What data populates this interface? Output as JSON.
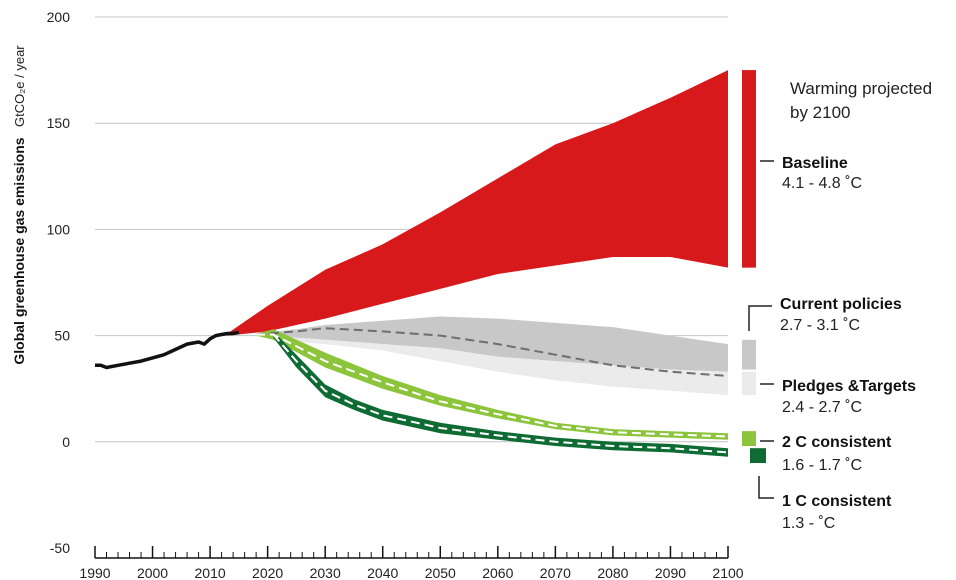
{
  "chart_data": {
    "type": "area",
    "ylabel_bold": "Global greenhouse gas emissions",
    "ylabel_unit": "GtCO₂e / year",
    "legend_heading": [
      "Warming projected",
      "by 2100"
    ],
    "x_ticks": [
      1990,
      2000,
      2010,
      2020,
      2030,
      2040,
      2050,
      2060,
      2070,
      2080,
      2090,
      2100
    ],
    "y_ticks": [
      -50,
      0,
      50,
      100,
      150,
      200
    ],
    "xlim": [
      1990,
      2100
    ],
    "ylim": [
      -50,
      200
    ],
    "historical": {
      "x": [
        1990,
        1991,
        1992,
        1994,
        1996,
        1998,
        2000,
        2002,
        2004,
        2006,
        2008,
        2009,
        2010,
        2011,
        2012,
        2013,
        2014,
        2015
      ],
      "y": [
        36,
        36,
        35,
        36,
        37,
        38,
        39.5,
        41,
        43.5,
        46,
        47,
        46,
        48.5,
        50,
        50.5,
        51,
        51,
        51.5
      ]
    },
    "bands": [
      {
        "name": "Baseline",
        "range": "4.1 - 4.8 ˚C",
        "color": "#d7191c",
        "x": [
          2013,
          2020,
          2030,
          2040,
          2050,
          2060,
          2070,
          2080,
          2090,
          2100
        ],
        "upper": [
          51,
          64,
          81,
          93,
          108,
          124,
          140,
          150,
          162,
          175
        ],
        "lower": [
          50,
          52,
          58,
          65,
          72,
          79,
          83,
          87,
          87,
          82
        ]
      },
      {
        "name": "Current policies",
        "range": "2.7 - 3.1 ˚C",
        "color": "#c8c8c8",
        "x": [
          2018,
          2025,
          2030,
          2040,
          2050,
          2060,
          2070,
          2080,
          2090,
          2100
        ],
        "upper": [
          51,
          53,
          55,
          57,
          59,
          58,
          56,
          54,
          50,
          46
        ],
        "lower": [
          50,
          49,
          48,
          46,
          44,
          40,
          38,
          36,
          34,
          33
        ],
        "median": [
          50.5,
          52,
          53.5,
          52,
          50,
          46,
          41,
          36,
          33,
          31
        ]
      },
      {
        "name": "Pledges &Targets",
        "range": "2.4 - 2.7 ˚C",
        "color": "#ebebeb",
        "x": [
          2018,
          2025,
          2030,
          2040,
          2050,
          2060,
          2070,
          2080,
          2090,
          2100
        ],
        "upper": [
          50,
          49,
          48,
          46,
          44,
          40,
          38,
          36,
          34,
          33
        ],
        "lower": [
          50,
          47,
          46,
          43,
          38,
          33,
          29,
          26,
          24,
          22
        ]
      },
      {
        "name": "2 C consistent",
        "range": "1.6 - 1.7 ˚C",
        "color": "#8cc43c",
        "x": [
          2018,
          2021,
          2030,
          2040,
          2050,
          2060,
          2070,
          2080,
          2090,
          2100
        ],
        "upper": [
          51,
          53,
          42,
          31,
          22,
          15,
          9,
          6,
          5,
          4
        ],
        "lower": [
          50,
          48,
          35,
          25,
          17,
          11,
          6,
          3,
          2,
          1
        ],
        "median": [
          50.5,
          50.5,
          38,
          28,
          19,
          13,
          7.5,
          4.5,
          3.5,
          2.5
        ]
      },
      {
        "name": "1 C consistent",
        "range": "1.3 - ˚C",
        "color": "#0f6b34",
        "x": [
          2021,
          2025,
          2030,
          2035,
          2040,
          2050,
          2060,
          2070,
          2080,
          2090,
          2100
        ],
        "upper": [
          52,
          41,
          27,
          20,
          15,
          9,
          5,
          2,
          0,
          -1,
          -3
        ],
        "lower": [
          49,
          35,
          21,
          15,
          10,
          4,
          1,
          -2,
          -4,
          -5,
          -7
        ],
        "median": [
          50.5,
          38,
          24,
          17.5,
          12.5,
          6.5,
          3,
          0,
          -2,
          -3,
          -5
        ]
      }
    ],
    "legend_bars": [
      {
        "color": "#d7191c",
        "ymin": 82,
        "ymax": 175
      },
      {
        "color": "#c8c8c8",
        "ymin": 34,
        "ymax": 48
      },
      {
        "color": "#ebebeb",
        "ymin": 22,
        "ymax": 33
      },
      {
        "color": "#8cc43c",
        "ymin": -2,
        "ymax": 5
      },
      {
        "color": "#0f6b34",
        "ymin": -10,
        "ymax": -3
      }
    ]
  }
}
